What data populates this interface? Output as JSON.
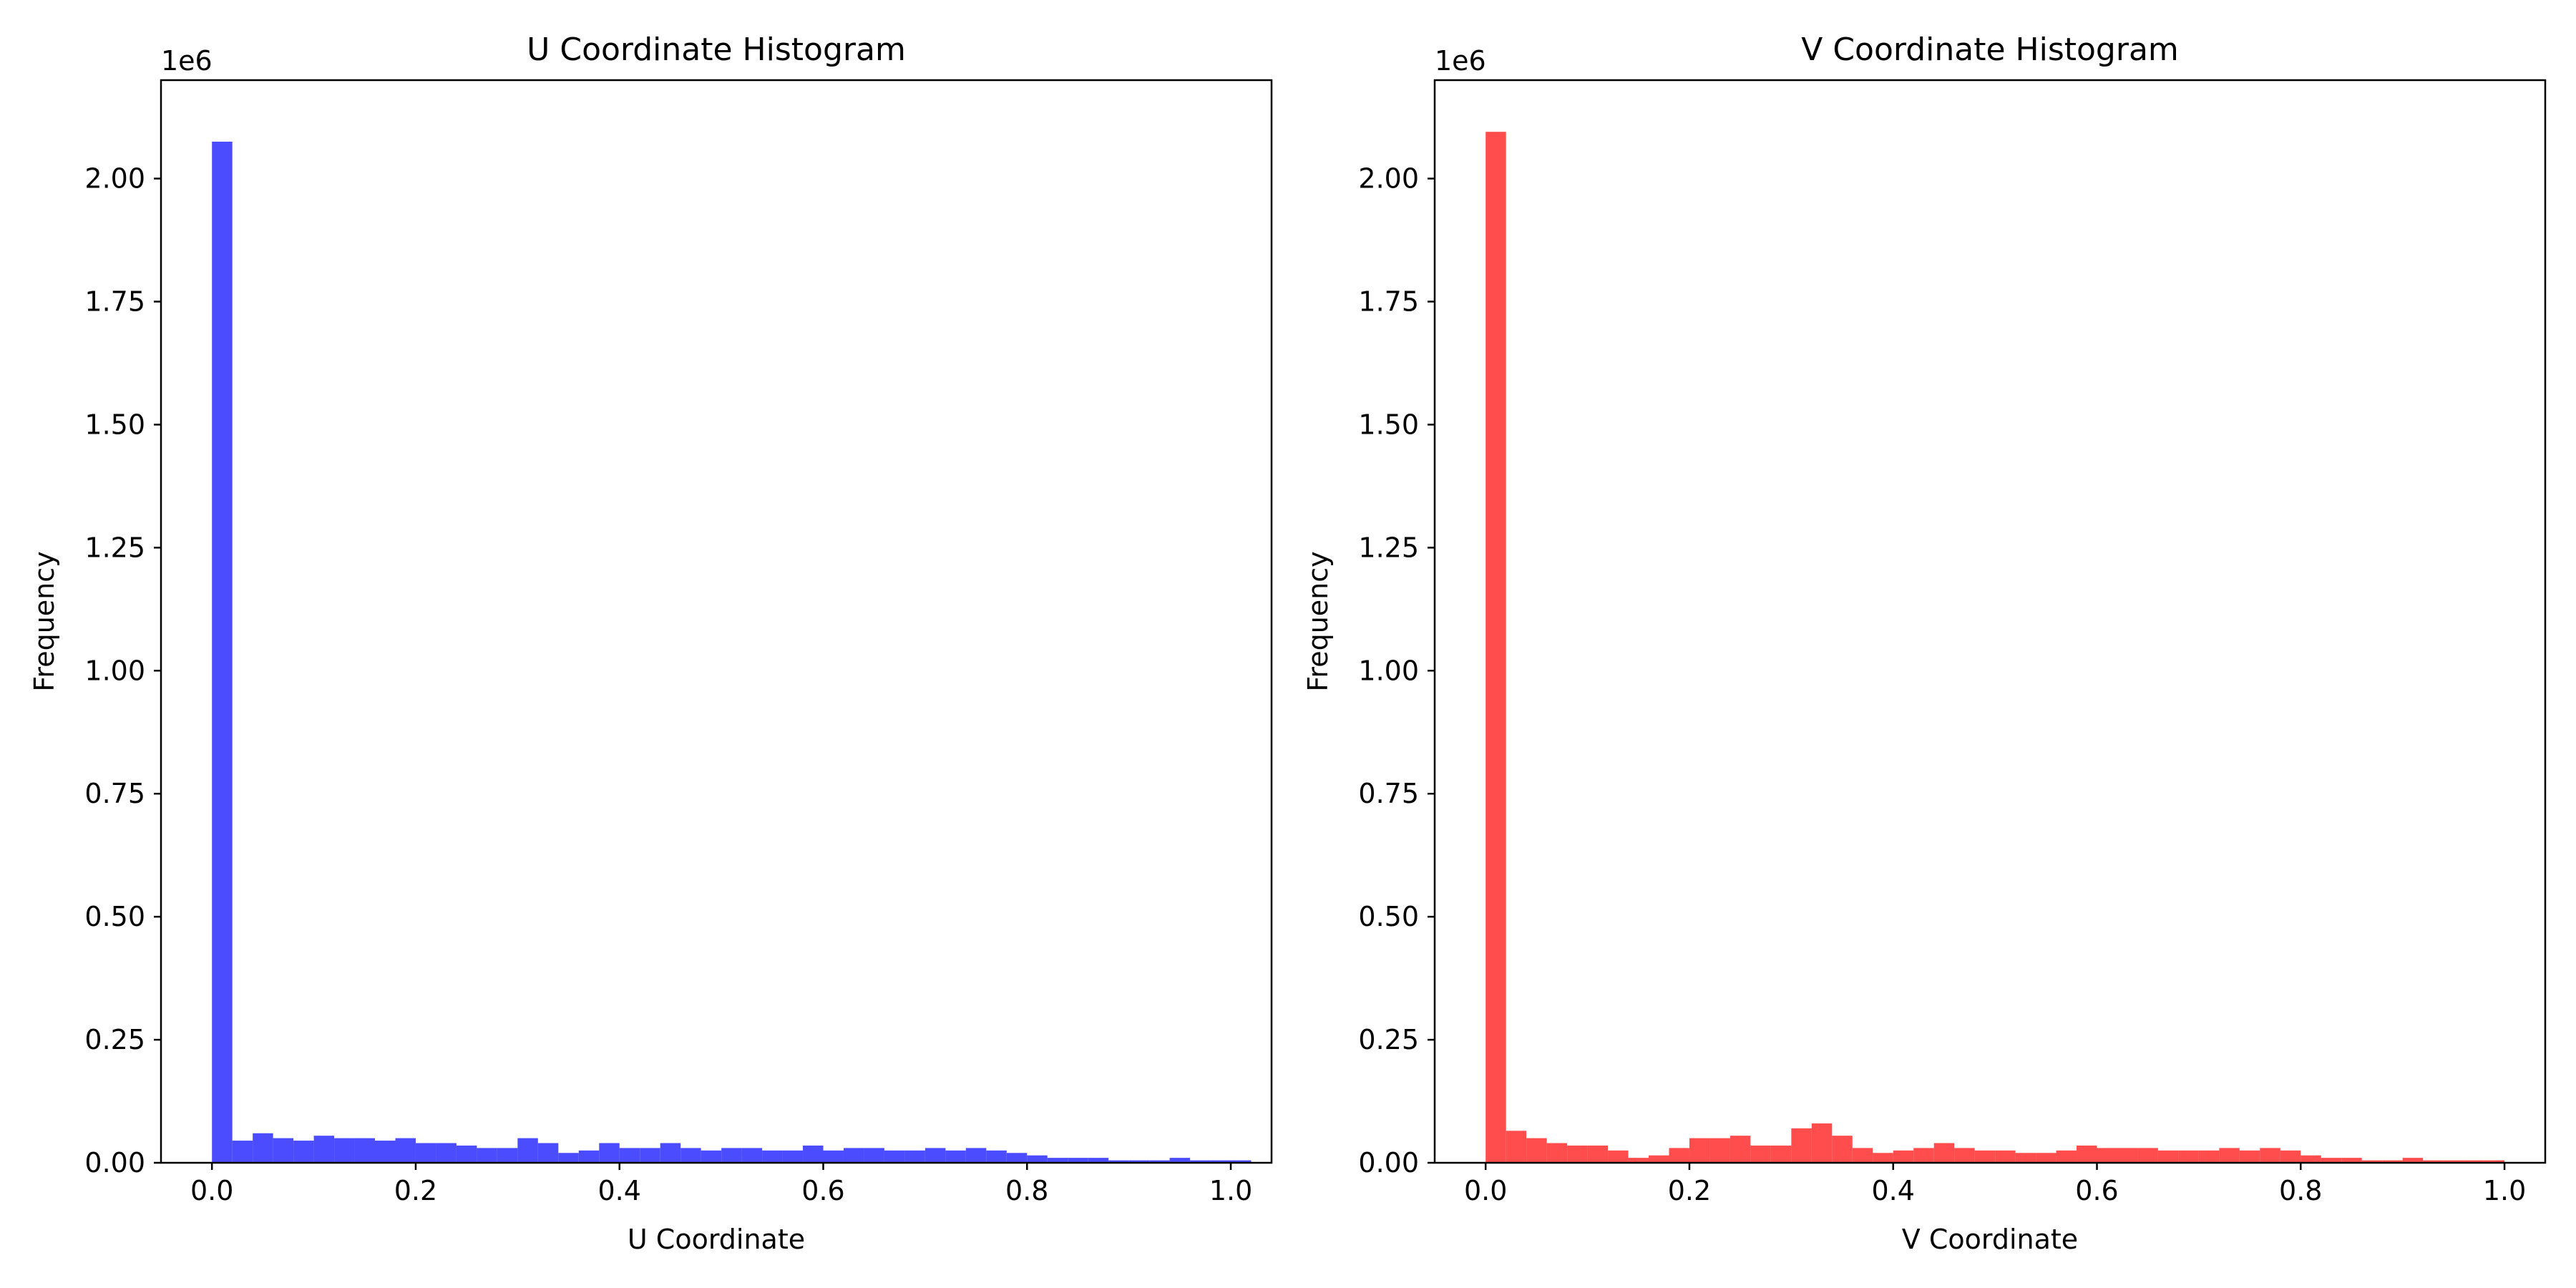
{
  "chart_data": [
    {
      "type": "bar",
      "title": "U Coordinate Histogram",
      "xlabel": "U Coordinate",
      "ylabel": "Frequency",
      "offset_text": "1e6",
      "xlim": [
        -0.05,
        1.04
      ],
      "ylim": [
        0,
        2.2
      ],
      "x_ticks": [
        "0.0",
        "0.2",
        "0.4",
        "0.6",
        "0.8",
        "1.0"
      ],
      "y_ticks": [
        "0.00",
        "0.25",
        "0.50",
        "0.75",
        "1.00",
        "1.25",
        "1.50",
        "1.75",
        "2.00"
      ],
      "bin_start": 0.0,
      "bin_width": 0.02,
      "color": "#4c4cff",
      "values": [
        2.075,
        0.045,
        0.06,
        0.05,
        0.045,
        0.055,
        0.05,
        0.05,
        0.045,
        0.05,
        0.04,
        0.04,
        0.035,
        0.03,
        0.03,
        0.05,
        0.04,
        0.02,
        0.025,
        0.04,
        0.03,
        0.03,
        0.04,
        0.03,
        0.025,
        0.03,
        0.03,
        0.025,
        0.025,
        0.035,
        0.025,
        0.03,
        0.03,
        0.025,
        0.025,
        0.03,
        0.025,
        0.03,
        0.025,
        0.02,
        0.015,
        0.01,
        0.01,
        0.01,
        0.005,
        0.005,
        0.005,
        0.01,
        0.005,
        0.005,
        0.005
      ]
    },
    {
      "type": "bar",
      "title": "V Coordinate Histogram",
      "xlabel": "V Coordinate",
      "ylabel": "Frequency",
      "offset_text": "1e6",
      "xlim": [
        -0.05,
        1.04
      ],
      "ylim": [
        0,
        2.2
      ],
      "x_ticks": [
        "0.0",
        "0.2",
        "0.4",
        "0.6",
        "0.8",
        "1.0"
      ],
      "y_ticks": [
        "0.00",
        "0.25",
        "0.50",
        "0.75",
        "1.00",
        "1.25",
        "1.50",
        "1.75",
        "2.00"
      ],
      "bin_start": 0.0,
      "bin_width": 0.02,
      "color": "#ff4c4c",
      "values": [
        2.095,
        0.065,
        0.05,
        0.04,
        0.035,
        0.035,
        0.025,
        0.01,
        0.015,
        0.03,
        0.05,
        0.05,
        0.055,
        0.035,
        0.035,
        0.07,
        0.08,
        0.055,
        0.03,
        0.02,
        0.025,
        0.03,
        0.04,
        0.03,
        0.025,
        0.025,
        0.02,
        0.02,
        0.025,
        0.035,
        0.03,
        0.03,
        0.03,
        0.025,
        0.025,
        0.025,
        0.03,
        0.025,
        0.03,
        0.025,
        0.015,
        0.01,
        0.01,
        0.005,
        0.005,
        0.01,
        0.005,
        0.005,
        0.005,
        0.005
      ]
    }
  ]
}
